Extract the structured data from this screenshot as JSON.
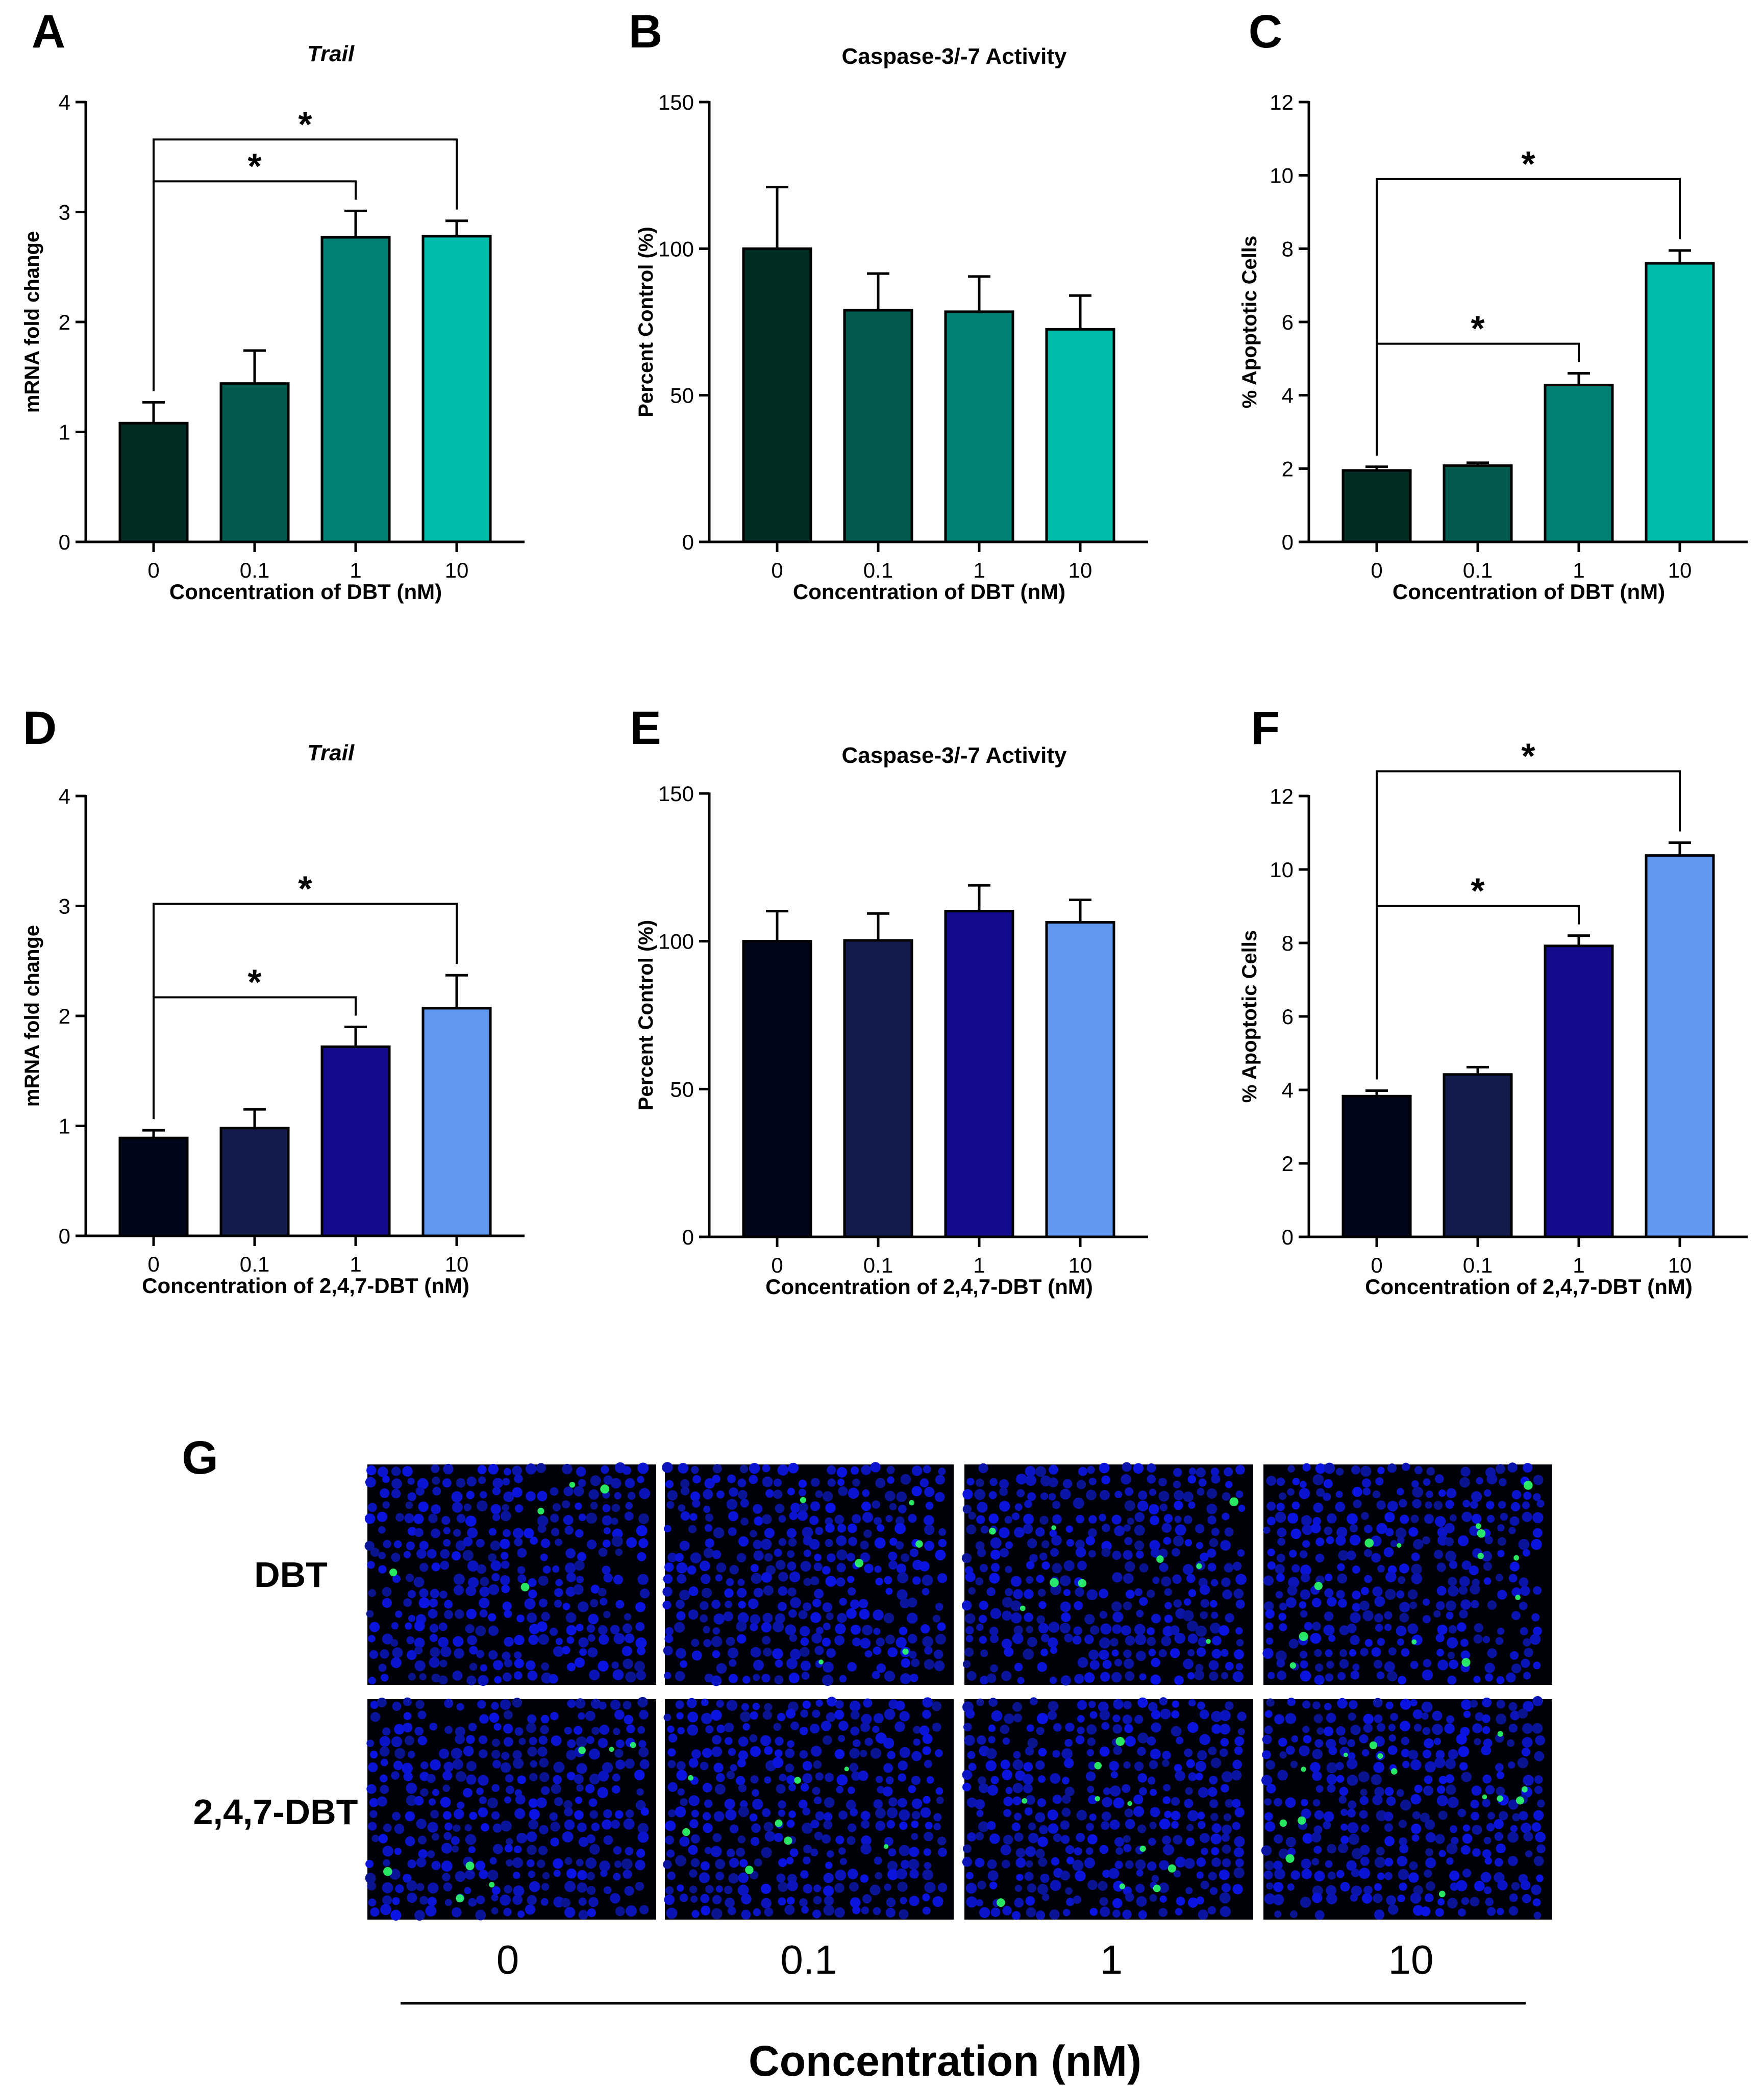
{
  "chart_data": [
    {
      "panel": "A",
      "type": "bar",
      "title": "Trail",
      "xlabel": "Concentration of DBT (nM)",
      "ylabel": "mRNA fold change",
      "categories": [
        "0",
        "0.1",
        "1",
        "10"
      ],
      "values": [
        1.08,
        1.44,
        2.77,
        2.78
      ],
      "errors": [
        0.19,
        0.3,
        0.24,
        0.14
      ],
      "colors": [
        "#012d24",
        "#015a4b",
        "#007f73",
        "#00bcab"
      ],
      "ylim": [
        0,
        4
      ],
      "yticks": [
        "0",
        "1",
        "2",
        "3",
        "4"
      ],
      "significance": [
        {
          "from": 0,
          "to": 2,
          "label": "*"
        },
        {
          "from": 0,
          "to": 3,
          "label": "*"
        }
      ]
    },
    {
      "panel": "B",
      "type": "bar",
      "title": "Caspase-3/-7 Activity",
      "xlabel": "Concentration of DBT (nM)",
      "ylabel": "Percent Control (%)",
      "categories": [
        "0",
        "0.1",
        "1",
        "10"
      ],
      "values": [
        100,
        79,
        78.5,
        72.5
      ],
      "errors": [
        21,
        12.5,
        12,
        11.5
      ],
      "colors": [
        "#012d24",
        "#015a4b",
        "#007f73",
        "#00bcab"
      ],
      "ylim": [
        0,
        150
      ],
      "yticks": [
        "0",
        "50",
        "100",
        "150"
      ],
      "significance": []
    },
    {
      "panel": "C",
      "type": "bar",
      "title": "",
      "xlabel": "Concentration of DBT (nM)",
      "ylabel": "% Apoptotic Cells",
      "categories": [
        "0",
        "0.1",
        "1",
        "10"
      ],
      "values": [
        1.95,
        2.08,
        4.28,
        7.6
      ],
      "errors": [
        0.1,
        0.08,
        0.32,
        0.35
      ],
      "colors": [
        "#012d24",
        "#015a4b",
        "#007f73",
        "#00bcab"
      ],
      "ylim": [
        0,
        12
      ],
      "yticks": [
        "0",
        "2",
        "4",
        "6",
        "8",
        "10",
        "12"
      ],
      "significance": [
        {
          "from": 0,
          "to": 2,
          "label": "*"
        },
        {
          "from": 0,
          "to": 3,
          "label": "*"
        }
      ]
    },
    {
      "panel": "D",
      "type": "bar",
      "title": "Trail",
      "xlabel": "Concentration of 2,4,7-DBT (nM)",
      "ylabel": "mRNA fold change",
      "categories": [
        "0",
        "0.1",
        "1",
        "10"
      ],
      "values": [
        0.89,
        0.98,
        1.72,
        2.07
      ],
      "errors": [
        0.07,
        0.17,
        0.18,
        0.3
      ],
      "colors": [
        "#02061a",
        "#121b4b",
        "#120b8b",
        "#6099ef"
      ],
      "ylim": [
        0,
        4
      ],
      "yticks": [
        "0",
        "1",
        "2",
        "3",
        "4"
      ],
      "significance": [
        {
          "from": 0,
          "to": 2,
          "label": "*"
        },
        {
          "from": 0,
          "to": 3,
          "label": "*"
        }
      ]
    },
    {
      "panel": "E",
      "type": "bar",
      "title": "Caspase-3/-7 Activity",
      "xlabel": "Concentration of 2,4,7-DBT (nM)",
      "ylabel": "Percent Control (%)",
      "categories": [
        "0",
        "0.1",
        "1",
        "10"
      ],
      "values": [
        100,
        100.3,
        110.2,
        106.4
      ],
      "errors": [
        10.2,
        9.1,
        8.7,
        7.6
      ],
      "colors": [
        "#02061a",
        "#121b4b",
        "#120b8b",
        "#6099ef"
      ],
      "ylim": [
        0,
        150
      ],
      "yticks": [
        "0",
        "50",
        "100",
        "150"
      ],
      "significance": []
    },
    {
      "panel": "F",
      "type": "bar",
      "title": "",
      "xlabel": "Concentration of 2,4,7-DBT (nM)",
      "ylabel": "% Apoptotic Cells",
      "categories": [
        "0",
        "0.1",
        "1",
        "10"
      ],
      "values": [
        3.83,
        4.42,
        7.92,
        10.38
      ],
      "errors": [
        0.15,
        0.2,
        0.28,
        0.35
      ],
      "colors": [
        "#02061a",
        "#121b4b",
        "#120b8b",
        "#6099ef"
      ],
      "ylim": [
        0,
        12
      ],
      "yticks": [
        "0",
        "2",
        "4",
        "6",
        "8",
        "10",
        "12"
      ],
      "significance": [
        {
          "from": 0,
          "to": 2,
          "label": "*"
        },
        {
          "from": 0,
          "to": 3,
          "label": "*"
        }
      ]
    }
  ],
  "panel_g": {
    "label": "G",
    "rows": [
      "DBT",
      "2,4,7-DBT"
    ],
    "columns": [
      "0",
      "0.1",
      "1",
      "10"
    ],
    "xlabel": "Concentration (nM)",
    "green_spot_counts": [
      [
        5,
        6,
        9,
        13
      ],
      [
        7,
        8,
        10,
        14
      ]
    ],
    "colors": {
      "background": "#000008",
      "nuclei": "#0a14c8",
      "apoptotic": "#2cff6a"
    }
  }
}
